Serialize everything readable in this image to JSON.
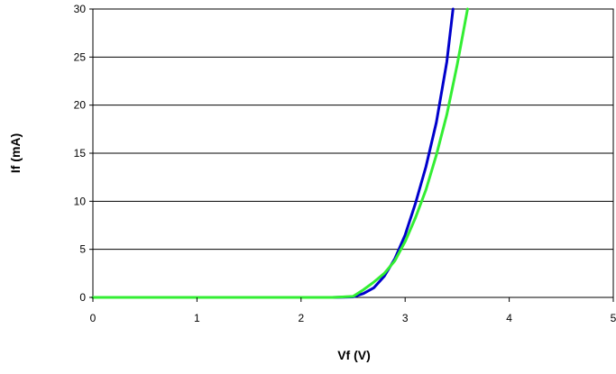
{
  "chart_data": {
    "type": "line",
    "xlabel": "Vf (V)",
    "ylabel": "If (mA)",
    "xlim": [
      0,
      5
    ],
    "ylim": [
      0,
      30
    ],
    "x_ticks": [
      0,
      1,
      2,
      3,
      4,
      5
    ],
    "y_ticks": [
      0,
      5,
      10,
      15,
      20,
      25,
      30
    ],
    "grid": "horizontal",
    "legend": "none",
    "series": [
      {
        "color": "#0000cc",
        "points": [
          [
            0,
            0
          ],
          [
            2.3,
            0
          ],
          [
            2.5,
            0.05
          ],
          [
            2.6,
            0.4
          ],
          [
            2.7,
            1.0
          ],
          [
            2.8,
            2.2
          ],
          [
            2.9,
            4.0
          ],
          [
            3.0,
            6.5
          ],
          [
            3.1,
            9.8
          ],
          [
            3.2,
            13.6
          ],
          [
            3.3,
            18.2
          ],
          [
            3.4,
            24.5
          ],
          [
            3.46,
            30
          ]
        ]
      },
      {
        "color": "#33ee33",
        "points": [
          [
            0,
            0
          ],
          [
            2.3,
            0
          ],
          [
            2.5,
            0.1
          ],
          [
            2.6,
            0.8
          ],
          [
            2.7,
            1.6
          ],
          [
            2.8,
            2.5
          ],
          [
            2.9,
            3.8
          ],
          [
            3.0,
            5.8
          ],
          [
            3.1,
            8.3
          ],
          [
            3.2,
            11.2
          ],
          [
            3.3,
            14.8
          ],
          [
            3.4,
            19.0
          ],
          [
            3.5,
            24.2
          ],
          [
            3.6,
            30
          ]
        ]
      }
    ]
  }
}
